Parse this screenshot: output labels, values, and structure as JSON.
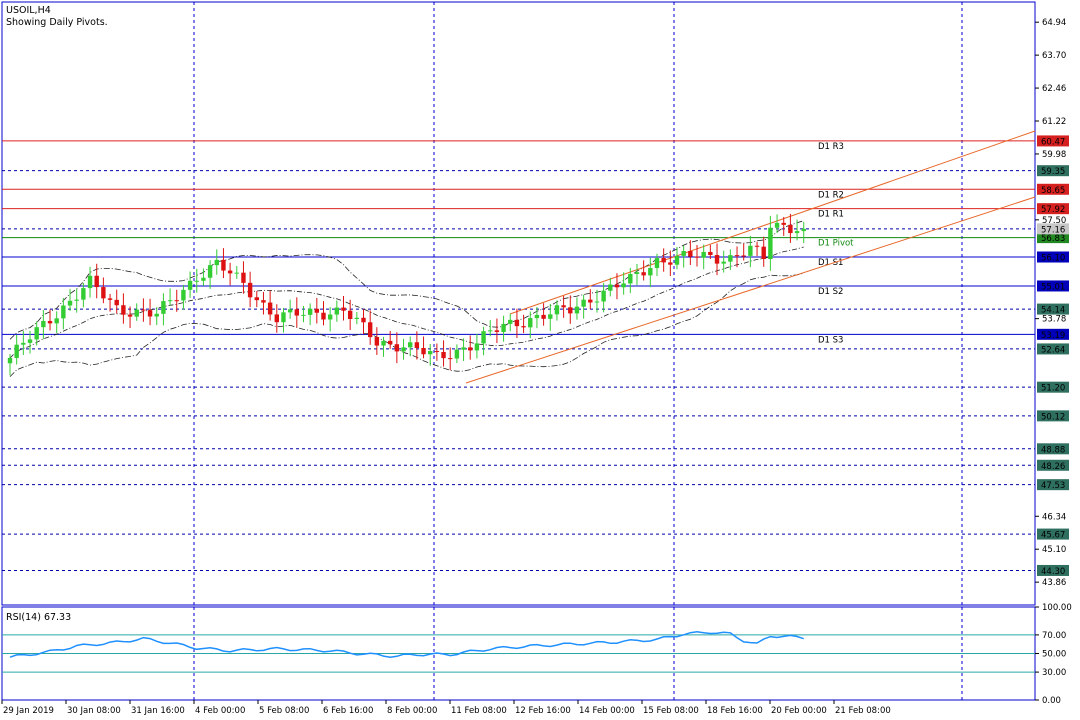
{
  "header": {
    "symbol": "USOIL,H4",
    "subtitle": "Showing Daily Pivots."
  },
  "colors": {
    "bull": "#33cc33",
    "bear": "#dd1111",
    "channel": "#e8682a",
    "grid": "#0000cc"
  },
  "chart_data": [
    {
      "type": "candlestick",
      "ylim": [
        43.0,
        65.7
      ],
      "y_ticks": [
        64.94,
        63.7,
        62.46,
        61.22,
        59.98,
        57.5,
        53.78,
        46.34,
        45.1,
        43.86
      ],
      "x_labels": [
        "29 Jan 2019",
        "30 Jan 08:00",
        "31 Jan 16:00",
        "4 Feb 00:00",
        "5 Feb 08:00",
        "6 Feb 16:00",
        "8 Feb 00:00",
        "11 Feb 08:00",
        "12 Feb 16:00",
        "14 Feb 00:00",
        "15 Feb 08:00",
        "18 Feb 16:00",
        "20 Feb 00:00",
        "21 Feb 08:00"
      ],
      "close_anchors": [
        {
          "candle": 0,
          "close": 52.3
        },
        {
          "candle": 6,
          "close": 53.8
        },
        {
          "candle": 12,
          "close": 55.1
        },
        {
          "candle": 16,
          "close": 54.2
        },
        {
          "candle": 22,
          "close": 53.9
        },
        {
          "candle": 28,
          "close": 55.4
        },
        {
          "candle": 31,
          "close": 55.8
        },
        {
          "candle": 35,
          "close": 55.1
        },
        {
          "candle": 40,
          "close": 53.8
        },
        {
          "candle": 45,
          "close": 54.0
        },
        {
          "candle": 50,
          "close": 54.1
        },
        {
          "candle": 55,
          "close": 52.9
        },
        {
          "candle": 59,
          "close": 52.8
        },
        {
          "candle": 64,
          "close": 52.3
        },
        {
          "candle": 70,
          "close": 52.9
        },
        {
          "candle": 74,
          "close": 53.5
        },
        {
          "candle": 78,
          "close": 53.8
        },
        {
          "candle": 84,
          "close": 54.1
        },
        {
          "candle": 88,
          "close": 54.7
        },
        {
          "candle": 93,
          "close": 55.2
        },
        {
          "candle": 97,
          "close": 56.0
        },
        {
          "candle": 102,
          "close": 56.1
        },
        {
          "candle": 108,
          "close": 56.1
        },
        {
          "candle": 111,
          "close": 56.4
        },
        {
          "candle": 113,
          "close": 56.0
        },
        {
          "candle": 114,
          "close": 57.3
        },
        {
          "candle": 119,
          "close": 57.25
        }
      ],
      "pivots": [
        {
          "name": "D1 R3",
          "value": 60.47,
          "tag": "60.47",
          "kind": "resistance"
        },
        {
          "name": "D1 R2",
          "value": 58.65,
          "tag": "58.65",
          "kind": "resistance"
        },
        {
          "name": "D1 R1",
          "value": 57.92,
          "tag": "57.92",
          "kind": "resistance"
        },
        {
          "name": "D1 Pivot",
          "value": 56.83,
          "tag": "56.83",
          "kind": "pivot"
        },
        {
          "name": "D1 S1",
          "value": 56.1,
          "tag": "56.10",
          "kind": "support"
        },
        {
          "name": "D1 S2",
          "value": 55.01,
          "tag": "55.01",
          "kind": "support"
        },
        {
          "name": "D1 S3",
          "value": 53.19,
          "tag": "53.19",
          "kind": "support"
        }
      ],
      "level_tags": [
        "59.35",
        "57.16",
        "54.14",
        "52.64",
        "51.20",
        "50.12",
        "48.88",
        "48.26",
        "47.53",
        "45.67",
        "44.30"
      ],
      "level_values": [
        59.35,
        57.16,
        54.14,
        52.64,
        51.2,
        50.12,
        48.88,
        48.26,
        47.53,
        45.67,
        44.3
      ],
      "current_price": 57.16
    },
    {
      "type": "line",
      "title": "RSI(14) 67.33",
      "ylim": [
        0,
        100
      ],
      "y_ticks": [
        "100.00",
        "70.00",
        "50.00",
        "30.00",
        "0.00"
      ],
      "levels": [
        70,
        50,
        30
      ],
      "x": [
        0,
        6,
        10,
        16,
        20,
        25,
        28,
        33,
        40,
        48,
        52,
        58,
        61,
        66,
        72,
        78,
        84,
        90,
        97,
        101,
        105,
        108,
        110,
        112,
        114,
        117,
        119
      ],
      "y": [
        46,
        52,
        58,
        62,
        66,
        60,
        56,
        53,
        55,
        53,
        50,
        47,
        49,
        49,
        55,
        58,
        60,
        62,
        65,
        71,
        73,
        71,
        64,
        60,
        69,
        68,
        67
      ]
    }
  ]
}
